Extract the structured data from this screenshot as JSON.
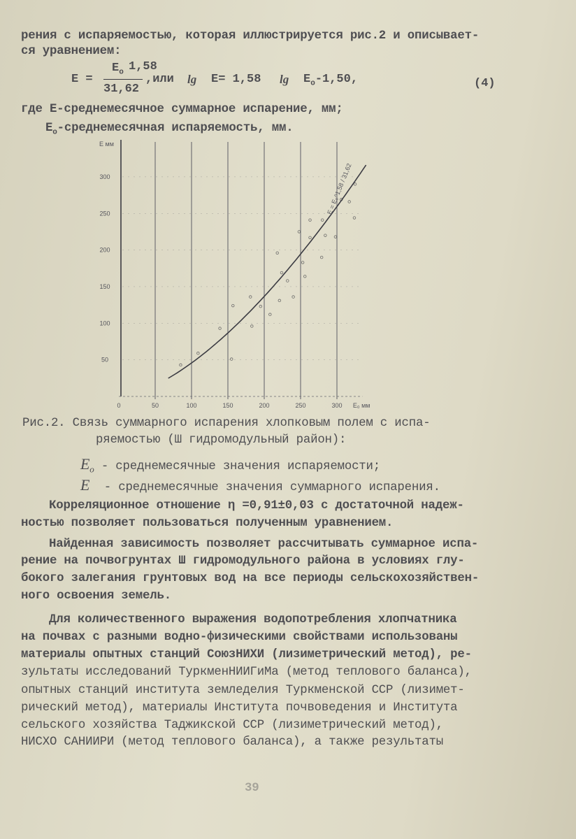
{
  "text_top": [
    "рения с испаряемостью, которая иллюстрируется рис.2 и описывает-",
    "ся уравнением:"
  ],
  "equation": {
    "lhs": "E =",
    "numerator": "E",
    "numerator_sub": "o",
    "exponent": "1,58",
    "denominator": "31,62",
    "or": ",или",
    "lg1": "lg",
    "rhs1": "E= 1,58",
    "lg2": "lg",
    "rhs2": "E",
    "rhs2_sub": "o",
    "rhs3": "-1,50,",
    "number": "(4)"
  },
  "definitions": [
    "где E-среднемесячное суммарное испарение, мм;",
    "-среднемесячная испаряемость, мм."
  ],
  "definition_symbol": "E",
  "definition_symbol_sub": "o",
  "chart_data": {
    "type": "scatter",
    "ylabel": "E мм",
    "xlabel": "E₀ мм",
    "xlim": [
      0,
      340
    ],
    "ylim": [
      0,
      320
    ],
    "x_ticks": [
      "0",
      "50",
      "100",
      "150",
      "200",
      "250",
      "300"
    ],
    "y_ticks": [
      "50",
      "100",
      "150",
      "200",
      "250",
      "300"
    ],
    "grid": "vertical lines",
    "curve_annotation": "E = E₀^1,58 / 31,62",
    "curve": {
      "formula": "E = E0^1.58 / 31.62",
      "x_range": [
        68,
        340
      ]
    },
    "points": [
      [
        85,
        43
      ],
      [
        109,
        59
      ],
      [
        139,
        93
      ],
      [
        155,
        51
      ],
      [
        157,
        124
      ],
      [
        181,
        136
      ],
      [
        183,
        96
      ],
      [
        195,
        123
      ],
      [
        208,
        112
      ],
      [
        218,
        196
      ],
      [
        221,
        131
      ],
      [
        224,
        169
      ],
      [
        232,
        158
      ],
      [
        240,
        136
      ],
      [
        248,
        225
      ],
      [
        253,
        183
      ],
      [
        256,
        164
      ],
      [
        263,
        217
      ],
      [
        263,
        241
      ],
      [
        280,
        241
      ],
      [
        279,
        190
      ],
      [
        284,
        220
      ],
      [
        298,
        218
      ],
      [
        306,
        269
      ],
      [
        317,
        266
      ],
      [
        324,
        244
      ],
      [
        325,
        290
      ]
    ],
    "colors": {
      "ink": "#3b3b42",
      "grid": "#6a6a70"
    }
  },
  "caption": [
    "Рис.2. Связь суммарного испарения хлопковым полем с испа-",
    "ряемостью (Ш гидромодульный район):"
  ],
  "legend": [
    {
      "symbol": "E",
      "sub": "o",
      "text": "- среднемесячные значения испаряемости;"
    },
    {
      "symbol": "E",
      "sub": "",
      "text": "- среднемесячные значения суммарного испарения."
    }
  ],
  "body": [
    "Корреляционное отношение η =0,91±0,03 с достаточной надеж-",
    "ностью позволяет пользоваться полученным уравнением.",
    "Найденная зависимость позволяет рассчитывать суммарное испа-",
    "рение на почвогрунтах Ш гидромодульного района в условиях глу-",
    "бокого залегания грунтовых вод на все периоды сельскохозяйствен-",
    "ного освоения земель.",
    "Для количественного выражения водопотребления хлопчатника",
    "на почвах с разными водно-физическими свойствами использованы",
    "материалы опытных станций СоюзНИХИ (лизиметрический метод), ре-",
    "зультаты исследований ТуркменНИИГиМа (метод теплового баланса),",
    "опытных станций института земледелия Туркменской ССР (лизимет-",
    "рический метод), материалы Института почвоведения и Института",
    "сельского хозяйства Таджикской ССР (лизиметрический метод),",
    "НИСХО САНИИРИ (метод теплового баланса), а также результаты"
  ],
  "page_number": "39"
}
